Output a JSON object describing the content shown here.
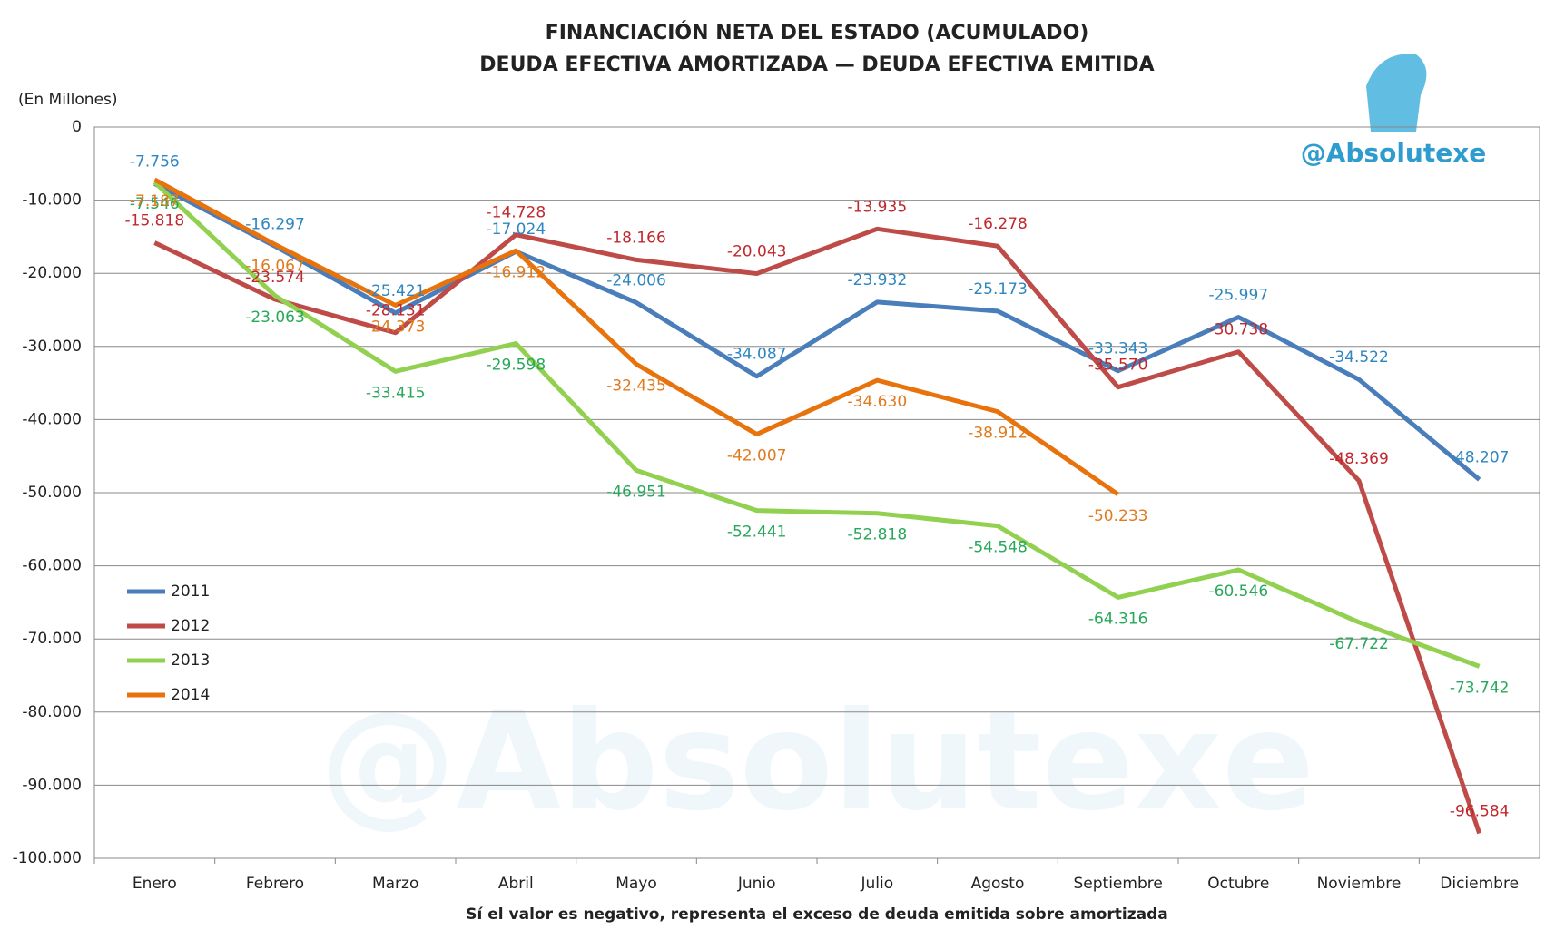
{
  "chart_data": {
    "type": "line",
    "title": "FINANCIACIÓN NETA DEL ESTADO (ACUMULADO)",
    "subtitle": "DEUDA EFECTIVA AMORTIZADA — DEUDA EFECTIVA EMITIDA",
    "ylabel": "(En Millones)",
    "xlabel": "Sí el valor es negativo, representa el exceso de deuda emitida sobre amortizada",
    "watermark": "@Absolutexe",
    "categories": [
      "Enero",
      "Febrero",
      "Marzo",
      "Abril",
      "Mayo",
      "Junio",
      "Julio",
      "Agosto",
      "Septiembre",
      "Octubre",
      "Noviembre",
      "Diciembre"
    ],
    "series": [
      {
        "name": "2011",
        "color": "#4a7ebb",
        "label_color": "#2e86c1",
        "values": [
          -7756,
          -16297,
          -25421,
          -17024,
          -24006,
          -34087,
          -23932,
          -25173,
          -33343,
          -25997,
          -34522,
          -48207
        ],
        "value_labels": [
          "-7.756",
          "-16.297",
          "-25.421",
          "-17.024",
          "-24.006",
          "-34.087",
          "-23.932",
          "-25.173",
          "-33.343",
          "-25.997",
          "-34.522",
          "-48.207"
        ]
      },
      {
        "name": "2012",
        "color": "#be4b48",
        "label_color": "#c0282d",
        "values": [
          -15818,
          -23574,
          -28131,
          -14728,
          -18166,
          -20043,
          -13935,
          -16278,
          -35570,
          -30738,
          -48369,
          -96584
        ],
        "value_labels": [
          "-15.818",
          "-23.574",
          "-28.131",
          "-14.728",
          "-18.166",
          "-20.043",
          "-13.935",
          "-16.278",
          "-35.570",
          "-30.738",
          "-48.369",
          "-96.584"
        ]
      },
      {
        "name": "2013",
        "color": "#92d050",
        "label_color": "#27a85a",
        "values": [
          -7546,
          -23063,
          -33415,
          -29598,
          -46951,
          -52441,
          -52818,
          -54548,
          -64316,
          -60546,
          -67722,
          -73742
        ],
        "value_labels": [
          "-7.546",
          "-23.063",
          "-33.415",
          "-29.598",
          "-46.951",
          "-52.441",
          "-52.818",
          "-54.548",
          "-64.316",
          "-60.546",
          "-67.722",
          "-73.742"
        ]
      },
      {
        "name": "2014",
        "color": "#e8720c",
        "label_color": "#e07a1f",
        "values": [
          -7187,
          -16067,
          -24373,
          -16912,
          -32435,
          -42007,
          -34630,
          -38912,
          -50233,
          null,
          null,
          null
        ],
        "value_labels": [
          "-7.187",
          "-16.067",
          "-24.373",
          "-16.912",
          "-32.435",
          "-42.007",
          "-34.630",
          "-38.912",
          "-50.233",
          null,
          null,
          null
        ]
      }
    ],
    "ylim": [
      -100000,
      0
    ],
    "yticks": [
      0,
      {
        "value": -10000,
        "label": "-10.000"
      },
      {
        "value": -20000,
        "label": "-20.000"
      },
      {
        "value": -30000,
        "label": "-30.000"
      },
      {
        "value": -40000,
        "label": "-40.000"
      },
      {
        "value": -50000,
        "label": "-50.000"
      },
      {
        "value": -60000,
        "label": "-60.000"
      },
      {
        "value": -70000,
        "label": "-70.000"
      },
      {
        "value": -80000,
        "label": "-80.000"
      },
      {
        "value": -90000,
        "label": "-90.000"
      },
      {
        "value": -100000,
        "label": "-100.000"
      }
    ],
    "grid": true,
    "legend": "left"
  }
}
